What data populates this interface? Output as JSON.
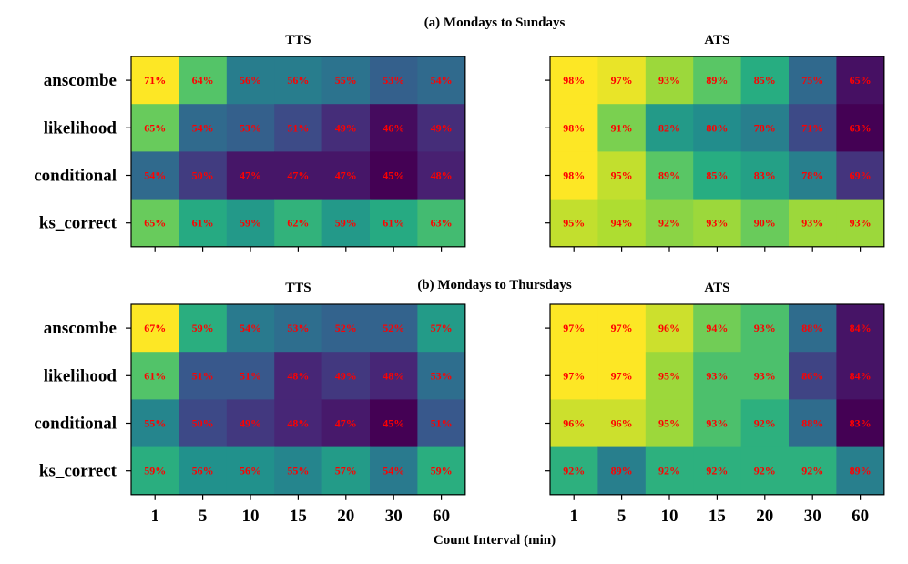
{
  "chart_data": {
    "type": "heatmap",
    "xlabel": "Count Interval (min)",
    "colormap": "viridis",
    "value_range": "row-independent per panel (min to max of each panel)",
    "label_color": "#ff0000",
    "sections": [
      {
        "title": "(a) Mondays to Sundays",
        "panels": [
          {
            "title": "TTS",
            "rows": [
              "anscombe",
              "likelihood",
              "conditional",
              "ks_correct"
            ],
            "columns": [
              "1",
              "5",
              "10",
              "15",
              "20",
              "30",
              "60"
            ],
            "values": [
              [
                71,
                64,
                56,
                56,
                55,
                53,
                54
              ],
              [
                65,
                54,
                53,
                51,
                49,
                46,
                49
              ],
              [
                54,
                50,
                47,
                47,
                47,
                45,
                48
              ],
              [
                65,
                61,
                59,
                62,
                59,
                61,
                63
              ]
            ]
          },
          {
            "title": "ATS",
            "rows": [
              "anscombe",
              "likelihood",
              "conditional",
              "ks_correct"
            ],
            "columns": [
              "1",
              "5",
              "10",
              "15",
              "20",
              "30",
              "60"
            ],
            "values": [
              [
                98,
                97,
                93,
                89,
                85,
                75,
                65
              ],
              [
                98,
                91,
                82,
                80,
                78,
                71,
                63
              ],
              [
                98,
                95,
                89,
                85,
                83,
                78,
                69
              ],
              [
                95,
                94,
                92,
                93,
                90,
                93,
                93
              ]
            ]
          }
        ]
      },
      {
        "title": "(b) Mondays to Thursdays",
        "panels": [
          {
            "title": "TTS",
            "rows": [
              "anscombe",
              "likelihood",
              "conditional",
              "ks_correct"
            ],
            "columns": [
              "1",
              "5",
              "10",
              "15",
              "20",
              "30",
              "60"
            ],
            "values": [
              [
                67,
                59,
                54,
                53,
                52,
                52,
                57
              ],
              [
                61,
                51,
                51,
                48,
                49,
                48,
                53
              ],
              [
                55,
                50,
                49,
                48,
                47,
                45,
                51
              ],
              [
                59,
                56,
                56,
                55,
                57,
                54,
                59
              ]
            ]
          },
          {
            "title": "ATS",
            "rows": [
              "anscombe",
              "likelihood",
              "conditional",
              "ks_correct"
            ],
            "columns": [
              "1",
              "5",
              "10",
              "15",
              "20",
              "30",
              "60"
            ],
            "values": [
              [
                97,
                97,
                96,
                94,
                93,
                88,
                84
              ],
              [
                97,
                97,
                95,
                93,
                93,
                86,
                84
              ],
              [
                96,
                96,
                95,
                93,
                92,
                88,
                83
              ],
              [
                92,
                89,
                92,
                92,
                92,
                92,
                89
              ]
            ]
          }
        ]
      }
    ]
  }
}
